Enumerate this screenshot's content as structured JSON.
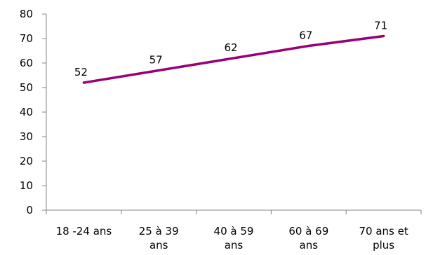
{
  "chart_data": {
    "type": "line",
    "categories": [
      [
        "18 -24 ans"
      ],
      [
        "25 à 39",
        "ans"
      ],
      [
        "40 à 59",
        "ans"
      ],
      [
        "60 à 69",
        "ans"
      ],
      [
        "70 ans et",
        "plus"
      ]
    ],
    "series": [
      {
        "values": [
          52,
          57,
          62,
          67,
          71
        ],
        "color": "#990077"
      }
    ],
    "data_labels": [
      "52",
      "57",
      "62",
      "67",
      "71"
    ],
    "ylim": [
      0,
      80
    ],
    "yticks": [
      0,
      10,
      20,
      30,
      40,
      50,
      60,
      70,
      80
    ],
    "ytick_labels": [
      "0",
      "10",
      "20",
      "30",
      "40",
      "50",
      "60",
      "70",
      "80"
    ],
    "grid": false,
    "legend": "none",
    "title": "",
    "xlabel": "",
    "ylabel": ""
  }
}
